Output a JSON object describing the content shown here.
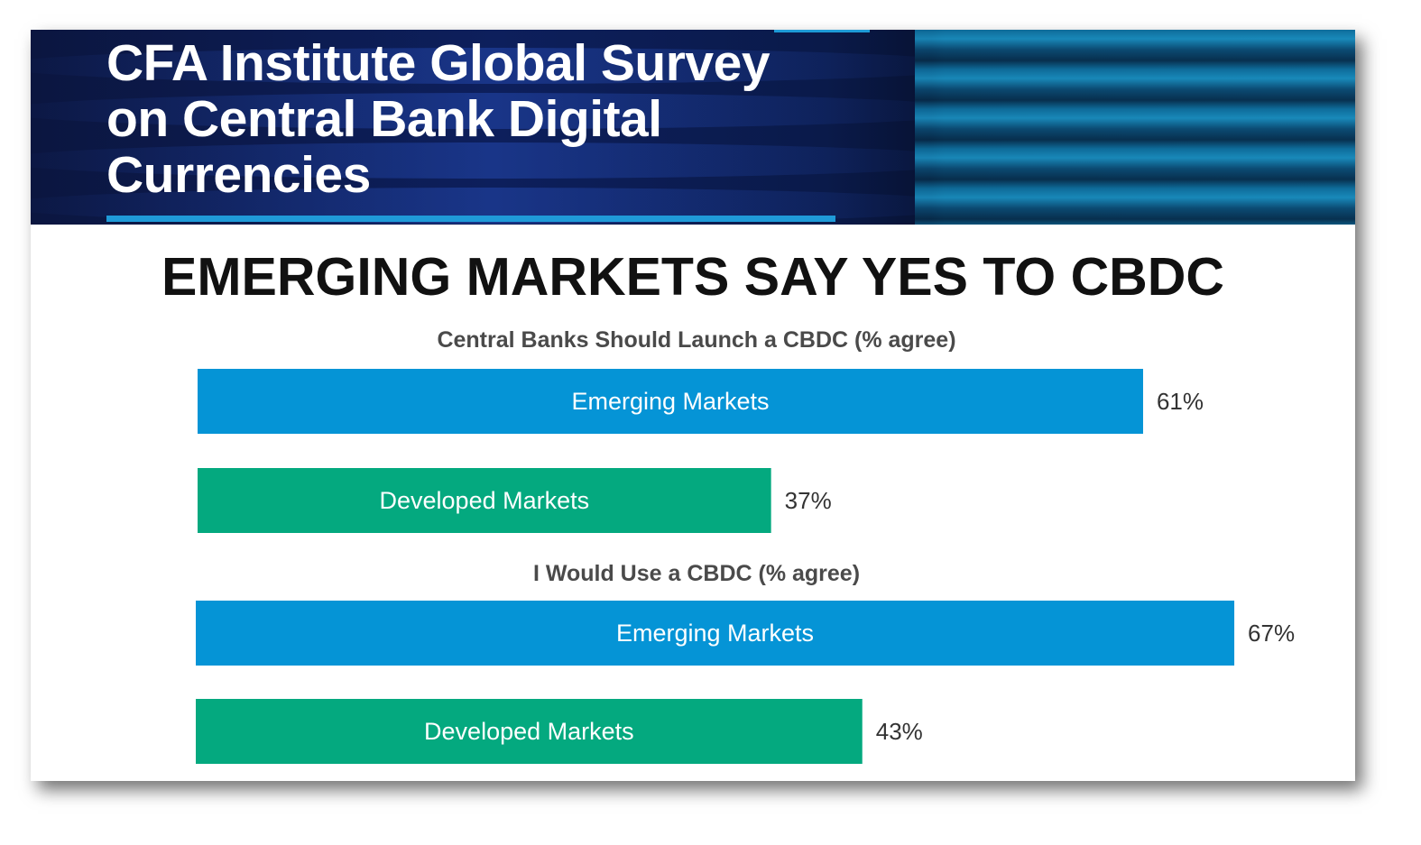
{
  "banner": {
    "title_line1": "CFA Institute Global Survey",
    "title_line2": "on Central Bank Digital",
    "title_line3": "Currencies"
  },
  "headline": "EMERGING MARKETS SAY YES TO CBDC",
  "colors": {
    "emerging": "#0594d6",
    "developed": "#04a97f",
    "banner_accent": "#1f9ad8"
  },
  "chart_data": {
    "type": "bar",
    "orientation": "horizontal",
    "groups": [
      {
        "title": "Central Banks Should Launch a CBDC (% agree)",
        "bars": [
          {
            "category": "Emerging Markets",
            "value": 61,
            "label": "61%"
          },
          {
            "category": "Developed Markets",
            "value": 37,
            "label": "37%"
          }
        ]
      },
      {
        "title": "I Would Use a CBDC (% agree)",
        "bars": [
          {
            "category": "Emerging Markets",
            "value": 67,
            "label": "67%"
          },
          {
            "category": "Developed Markets",
            "value": 43,
            "label": "43%"
          }
        ]
      }
    ]
  }
}
